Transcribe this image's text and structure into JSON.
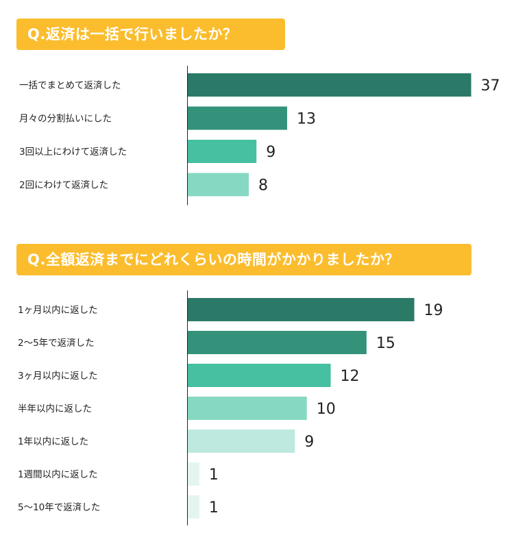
{
  "chart_data": [
    {
      "type": "bar",
      "orientation": "horizontal",
      "title": "Q.返済は一括で行いましたか？",
      "categories": [
        "一括でまとめて返済した",
        "月々の分割払いにした",
        "3回以上にわけて返済した",
        "2回にわけて返済した"
      ],
      "values": [
        37,
        13,
        9,
        8
      ],
      "colors": [
        "#2a7a67",
        "#34917a",
        "#47bfa1",
        "#86d8c3"
      ],
      "xlim": [
        0,
        37
      ],
      "grid": false,
      "legend": "none"
    },
    {
      "type": "bar",
      "orientation": "horizontal",
      "title": "Q.全額返済までにどれくらいの時間がかかりましたか？",
      "categories": [
        "1ヶ月以内に返した",
        "2〜5年で返済した",
        "3ヶ月以内に返した",
        "半年以内に返した",
        "1年以内に返した",
        "1週間以内に返した",
        "5〜10年で返済した"
      ],
      "values": [
        19,
        15,
        12,
        10,
        9,
        1,
        1
      ],
      "colors": [
        "#2a7a67",
        "#34917a",
        "#47bfa1",
        "#86d8c3",
        "#bde9df",
        "#e4f5f1",
        "#e4f5f1"
      ],
      "xlim": [
        0,
        19
      ],
      "grid": false,
      "legend": "none"
    }
  ],
  "accent_color": "#fbbd2e"
}
